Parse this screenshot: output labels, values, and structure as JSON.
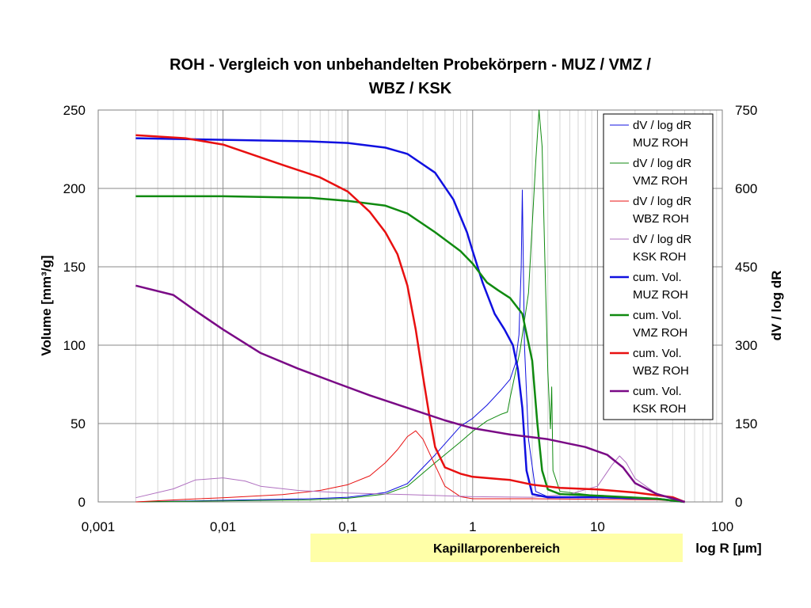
{
  "colors": {
    "blue": "#1010e0",
    "green": "#108a10",
    "red": "#e81010",
    "purple": "#7a0a86",
    "pink": "#b070c0",
    "band": "#ffffa8"
  },
  "chart_data": {
    "type": "line",
    "title_lines": [
      "ROH - Vergleich von unbehandelten Probekörpern - MUZ / VMZ /",
      "WBZ / KSK"
    ],
    "xlabel": "log R [µm]",
    "ylabel": "Volume [mm³/g]",
    "y2label": "dV / log dR",
    "xscale": "log",
    "xlim": [
      0.001,
      100
    ],
    "ylim": [
      0,
      250
    ],
    "y2lim": [
      0,
      750
    ],
    "x_ticks": [
      "0,001",
      "0,01",
      "0,1",
      "1",
      "10",
      "100"
    ],
    "y_ticks": [
      "0",
      "50",
      "100",
      "150",
      "200",
      "250"
    ],
    "y2_ticks": [
      "0",
      "150",
      "300",
      "450",
      "600",
      "750"
    ],
    "grid": true,
    "legend_position": "right",
    "band": {
      "label": "Kapillarporenbereich"
    },
    "series": [
      {
        "name": "dV / log dR MUZ ROH",
        "legend_lines": [
          "dV / log dR",
          "MUZ ROH"
        ],
        "axis": "y2",
        "color": "#1010e0",
        "width": 1,
        "points": [
          [
            0.002,
            0
          ],
          [
            0.01,
            3
          ],
          [
            0.05,
            6
          ],
          [
            0.1,
            9
          ],
          [
            0.2,
            18
          ],
          [
            0.3,
            35
          ],
          [
            0.5,
            90
          ],
          [
            0.8,
            145
          ],
          [
            1.0,
            160
          ],
          [
            1.3,
            185
          ],
          [
            1.7,
            215
          ],
          [
            2.0,
            235
          ],
          [
            2.2,
            265
          ],
          [
            2.35,
            320
          ],
          [
            2.45,
            450
          ],
          [
            2.5,
            597
          ],
          [
            2.6,
            300
          ],
          [
            2.8,
            120
          ],
          [
            3.2,
            20
          ],
          [
            4,
            10
          ],
          [
            10,
            8
          ],
          [
            30,
            5
          ],
          [
            50,
            0
          ]
        ]
      },
      {
        "name": "dV / log dR VMZ ROH",
        "legend_lines": [
          "dV / log dR",
          "VMZ ROH"
        ],
        "axis": "y2",
        "color": "#108a10",
        "width": 1,
        "points": [
          [
            0.002,
            0
          ],
          [
            0.01,
            2
          ],
          [
            0.05,
            4
          ],
          [
            0.1,
            7
          ],
          [
            0.2,
            15
          ],
          [
            0.3,
            30
          ],
          [
            0.5,
            75
          ],
          [
            0.8,
            115
          ],
          [
            1.0,
            135
          ],
          [
            1.3,
            155
          ],
          [
            1.7,
            168
          ],
          [
            1.9,
            172
          ],
          [
            2.0,
            200
          ],
          [
            2.4,
            290
          ],
          [
            2.8,
            400
          ],
          [
            3.0,
            530
          ],
          [
            3.2,
            650
          ],
          [
            3.4,
            750
          ],
          [
            3.6,
            680
          ],
          [
            3.8,
            450
          ],
          [
            4.0,
            250
          ],
          [
            4.2,
            140
          ],
          [
            4.3,
            220
          ],
          [
            4.4,
            60
          ],
          [
            5,
            20
          ],
          [
            10,
            12
          ],
          [
            30,
            6
          ],
          [
            50,
            0
          ]
        ]
      },
      {
        "name": "dV / log dR WBZ ROH",
        "legend_lines": [
          "dV / log dR",
          "WBZ ROH"
        ],
        "axis": "y2",
        "color": "#e81010",
        "width": 1,
        "points": [
          [
            0.002,
            0
          ],
          [
            0.005,
            5
          ],
          [
            0.01,
            8
          ],
          [
            0.03,
            14
          ],
          [
            0.06,
            22
          ],
          [
            0.1,
            33
          ],
          [
            0.15,
            50
          ],
          [
            0.2,
            75
          ],
          [
            0.25,
            100
          ],
          [
            0.3,
            125
          ],
          [
            0.35,
            136
          ],
          [
            0.4,
            120
          ],
          [
            0.5,
            70
          ],
          [
            0.6,
            30
          ],
          [
            0.8,
            10
          ],
          [
            1.0,
            6
          ],
          [
            3,
            6
          ],
          [
            10,
            5
          ],
          [
            30,
            4
          ],
          [
            50,
            0
          ]
        ]
      },
      {
        "name": "dV / log dR KSK ROH",
        "legend_lines": [
          "dV / log dR",
          "KSK ROH"
        ],
        "axis": "y2",
        "color": "#b070c0",
        "width": 1,
        "points": [
          [
            0.002,
            8
          ],
          [
            0.004,
            25
          ],
          [
            0.006,
            42
          ],
          [
            0.01,
            46
          ],
          [
            0.015,
            40
          ],
          [
            0.02,
            30
          ],
          [
            0.04,
            22
          ],
          [
            0.1,
            17
          ],
          [
            0.3,
            14
          ],
          [
            1,
            10
          ],
          [
            3,
            9
          ],
          [
            6,
            15
          ],
          [
            10,
            30
          ],
          [
            13,
            70
          ],
          [
            15,
            88
          ],
          [
            17,
            75
          ],
          [
            20,
            45
          ],
          [
            30,
            15
          ],
          [
            50,
            0
          ]
        ]
      },
      {
        "name": "cum. Vol. MUZ ROH",
        "legend_lines": [
          "cum. Vol.",
          "MUZ ROH"
        ],
        "axis": "y",
        "color": "#1010e0",
        "width": 2.5,
        "points": [
          [
            0.002,
            232
          ],
          [
            0.01,
            231
          ],
          [
            0.05,
            230
          ],
          [
            0.1,
            229
          ],
          [
            0.2,
            226
          ],
          [
            0.3,
            222
          ],
          [
            0.5,
            210
          ],
          [
            0.7,
            193
          ],
          [
            0.9,
            172
          ],
          [
            1.0,
            160
          ],
          [
            1.2,
            140
          ],
          [
            1.5,
            120
          ],
          [
            1.8,
            110
          ],
          [
            2.1,
            100
          ],
          [
            2.3,
            85
          ],
          [
            2.5,
            60
          ],
          [
            2.7,
            20
          ],
          [
            3.0,
            5
          ],
          [
            4.0,
            3
          ],
          [
            10,
            3
          ],
          [
            30,
            2
          ],
          [
            50,
            0
          ]
        ]
      },
      {
        "name": "cum. Vol. VMZ ROH",
        "legend_lines": [
          "cum. Vol.",
          "VMZ ROH"
        ],
        "axis": "y",
        "color": "#108a10",
        "width": 2.5,
        "points": [
          [
            0.002,
            195
          ],
          [
            0.01,
            195
          ],
          [
            0.05,
            194
          ],
          [
            0.1,
            192
          ],
          [
            0.2,
            189
          ],
          [
            0.3,
            184
          ],
          [
            0.5,
            172
          ],
          [
            0.8,
            160
          ],
          [
            1.0,
            152
          ],
          [
            1.3,
            140
          ],
          [
            1.6,
            135
          ],
          [
            2.0,
            130
          ],
          [
            2.5,
            120
          ],
          [
            3.0,
            90
          ],
          [
            3.3,
            50
          ],
          [
            3.6,
            20
          ],
          [
            4.0,
            8
          ],
          [
            5,
            5
          ],
          [
            10,
            4
          ],
          [
            30,
            2
          ],
          [
            50,
            0
          ]
        ]
      },
      {
        "name": "cum. Vol. WBZ ROH",
        "legend_lines": [
          "cum. Vol.",
          "WBZ ROH"
        ],
        "axis": "y",
        "color": "#e81010",
        "width": 2.5,
        "points": [
          [
            0.002,
            234
          ],
          [
            0.005,
            232
          ],
          [
            0.01,
            228
          ],
          [
            0.03,
            215
          ],
          [
            0.06,
            207
          ],
          [
            0.1,
            198
          ],
          [
            0.15,
            185
          ],
          [
            0.2,
            172
          ],
          [
            0.25,
            158
          ],
          [
            0.3,
            138
          ],
          [
            0.35,
            110
          ],
          [
            0.4,
            80
          ],
          [
            0.45,
            55
          ],
          [
            0.5,
            35
          ],
          [
            0.6,
            22
          ],
          [
            0.8,
            18
          ],
          [
            1.0,
            16
          ],
          [
            2,
            14
          ],
          [
            3,
            11
          ],
          [
            5,
            9
          ],
          [
            10,
            8
          ],
          [
            20,
            6
          ],
          [
            40,
            3
          ],
          [
            50,
            0
          ]
        ]
      },
      {
        "name": "cum. Vol. KSK ROH",
        "legend_lines": [
          "cum. Vol.",
          "KSK ROH"
        ],
        "axis": "y",
        "color": "#7a0a86",
        "width": 2.5,
        "points": [
          [
            0.002,
            138
          ],
          [
            0.004,
            132
          ],
          [
            0.006,
            122
          ],
          [
            0.01,
            110
          ],
          [
            0.02,
            95
          ],
          [
            0.04,
            85
          ],
          [
            0.08,
            76
          ],
          [
            0.15,
            68
          ],
          [
            0.3,
            60
          ],
          [
            0.6,
            52
          ],
          [
            1.0,
            47
          ],
          [
            2,
            43
          ],
          [
            4,
            40
          ],
          [
            8,
            35
          ],
          [
            12,
            30
          ],
          [
            16,
            22
          ],
          [
            20,
            12
          ],
          [
            30,
            5
          ],
          [
            50,
            0
          ]
        ]
      }
    ]
  }
}
